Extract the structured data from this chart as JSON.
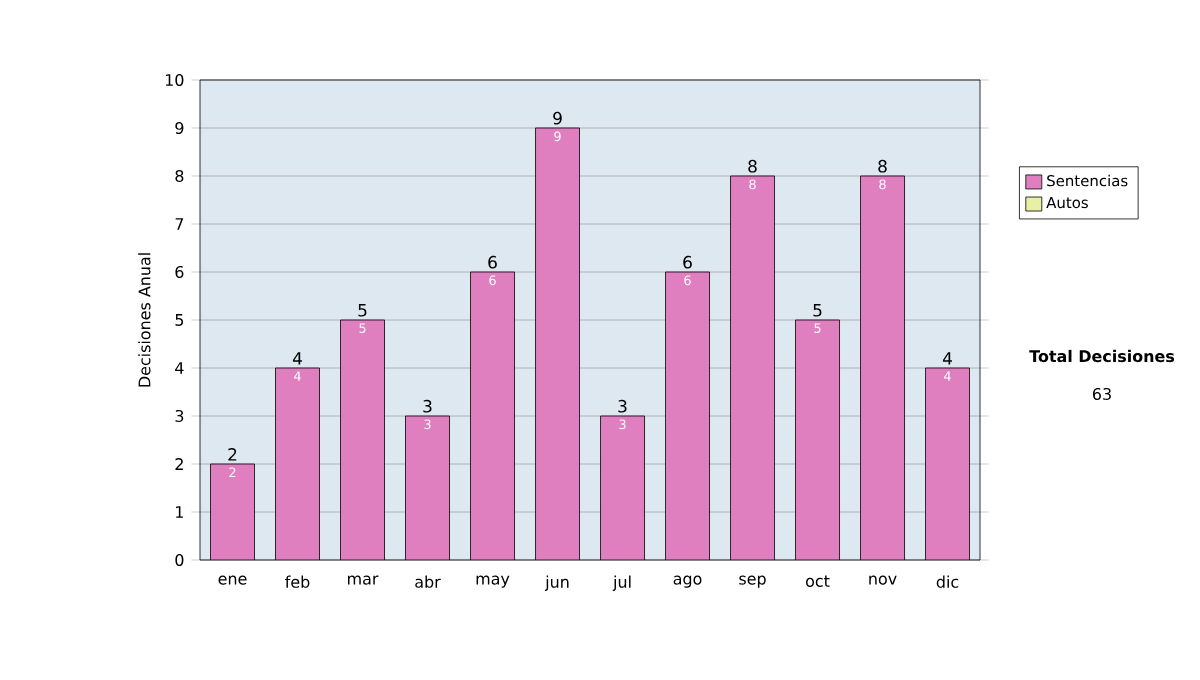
{
  "chart_data": {
    "type": "bar",
    "ylabel": "Decisiones Anual",
    "categories": [
      "ene",
      "feb",
      "mar",
      "abr",
      "may",
      "jun",
      "jul",
      "ago",
      "sep",
      "oct",
      "nov",
      "dic"
    ],
    "series": [
      {
        "name": "Sentencias",
        "color": "#e07fc0",
        "values": [
          2,
          4,
          5,
          3,
          6,
          9,
          3,
          6,
          8,
          5,
          8,
          4
        ],
        "value_labels": [
          "2",
          "4",
          "5",
          "3",
          "6",
          "9",
          "3",
          "6",
          "8",
          "5",
          "8",
          "4"
        ]
      },
      {
        "name": "Autos",
        "color": "#e8f0a8",
        "values": [
          0,
          0,
          0,
          0,
          0,
          0,
          0,
          0,
          0,
          0,
          0,
          0
        ]
      }
    ],
    "stacked": true,
    "totals": [
      "2",
      "4",
      "5",
      "3",
      "6",
      "9",
      "3",
      "6",
      "8",
      "5",
      "8",
      "4"
    ],
    "ylim": [
      0,
      10
    ],
    "yticks": [
      0,
      1,
      2,
      3,
      4,
      5,
      6,
      7,
      8,
      9,
      10
    ],
    "grid": "y",
    "legend": "right",
    "annotations": [
      "**Total Decisiones**",
      "63"
    ]
  }
}
